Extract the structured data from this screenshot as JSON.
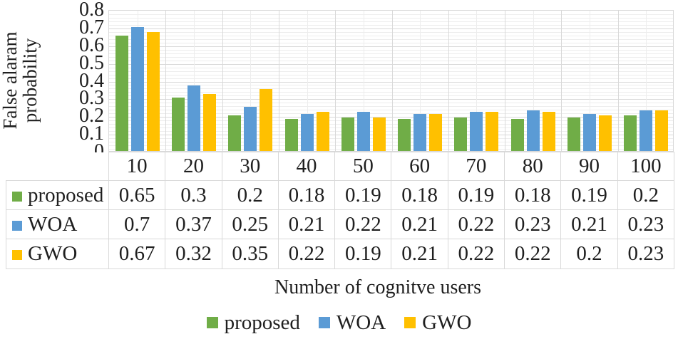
{
  "chart_data": {
    "type": "bar",
    "title": "",
    "categories": [
      "10",
      "20",
      "30",
      "40",
      "50",
      "60",
      "70",
      "80",
      "90",
      "100"
    ],
    "series": [
      {
        "name": "proposed",
        "color": "#70AD47",
        "values": [
          0.65,
          0.3,
          0.2,
          0.18,
          0.19,
          0.18,
          0.19,
          0.18,
          0.19,
          0.2
        ]
      },
      {
        "name": "WOA",
        "color": "#5B9BD5",
        "values": [
          0.7,
          0.37,
          0.25,
          0.21,
          0.22,
          0.21,
          0.22,
          0.23,
          0.21,
          0.23
        ]
      },
      {
        "name": "GWO",
        "color": "#FFC000",
        "values": [
          0.67,
          0.32,
          0.35,
          0.22,
          0.19,
          0.21,
          0.22,
          0.22,
          0.2,
          0.23
        ]
      }
    ],
    "ylabel": "False alaram probability",
    "ylabel_lines": [
      "False alaram",
      "probability"
    ],
    "xlabel": "Number of cognitve users",
    "ylim": [
      0,
      0.8
    ],
    "ytick_step": 0.1,
    "yticks": [
      "0.8",
      "0.7",
      "0.6",
      "0.5",
      "0.4",
      "0.3",
      "0.2",
      "0.1",
      "0"
    ],
    "minor_grid_step": 0.02,
    "grid": {
      "major": true,
      "minor": true,
      "vertical_major": true,
      "vertical_minor": true
    },
    "legend_position": "bottom",
    "legend": [
      "proposed",
      "WOA",
      "GWO"
    ],
    "data_table_shown": true,
    "grid_colors": {
      "major": "#d9d9d9",
      "minor": "#ededed",
      "axis": "#d9d9d9"
    },
    "text_color": "#1f1f1f"
  }
}
